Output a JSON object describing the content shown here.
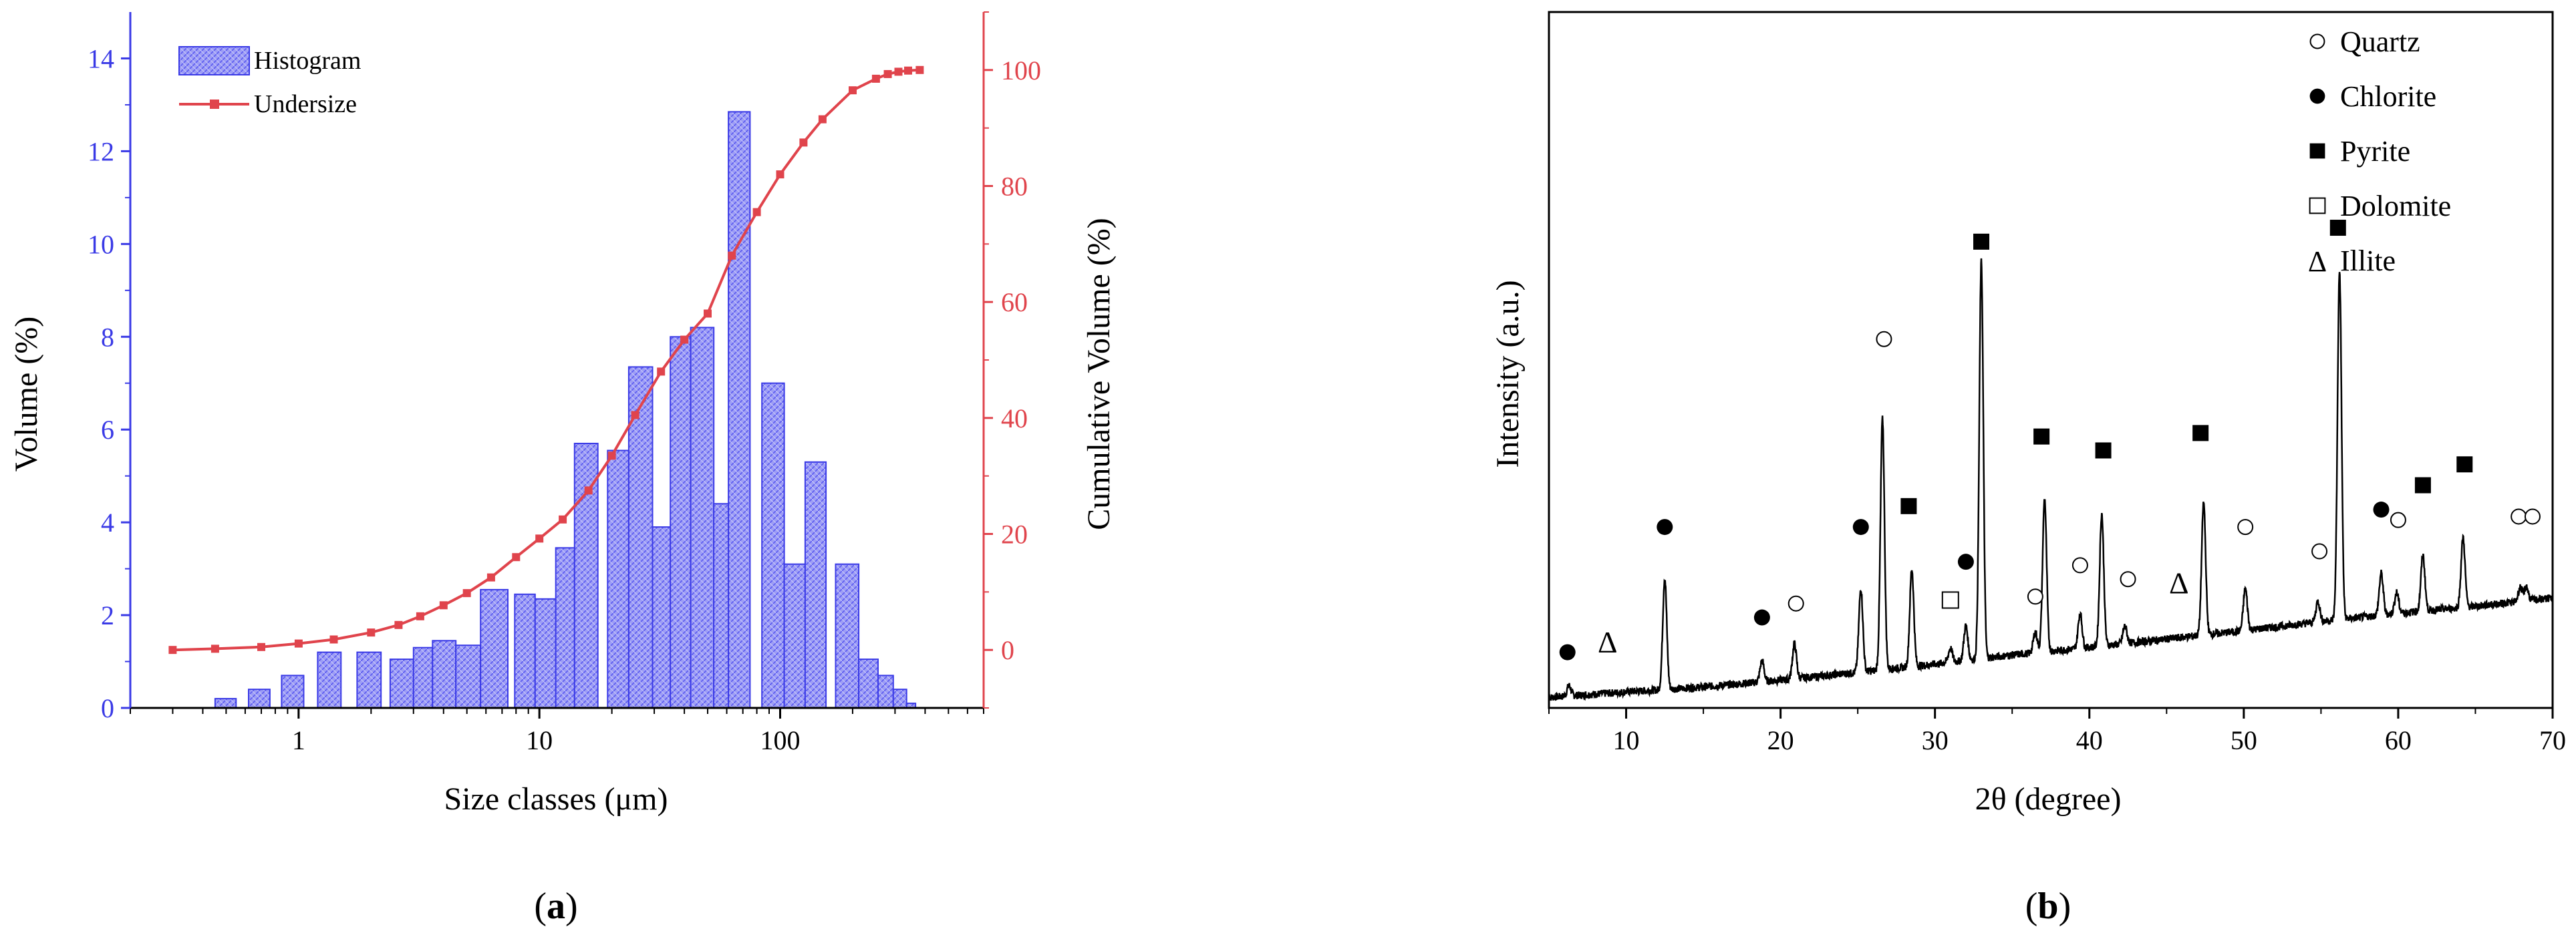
{
  "colors": {
    "histogram": "#3a3ae6",
    "histogram_fill": "#9d9df5",
    "undersize": "#e0444c",
    "axis": "#000000"
  },
  "panels": {
    "a": {
      "label_open": "(",
      "label_letter": "a",
      "label_close": ")"
    },
    "b": {
      "label_open": "(",
      "label_letter": "b",
      "label_close": ")"
    }
  },
  "chart_data": [
    {
      "id": "a",
      "type": "bar",
      "xlabel": "Size classes (μm)",
      "ylabel_left": "Volume (%)",
      "ylabel_right": "Cumulative Volume (%)",
      "x_scale": "log",
      "xlim": [
        0.2,
        700
      ],
      "ylim_left": [
        0,
        15
      ],
      "ylim_right": [
        -10,
        110
      ],
      "x_ticks": [
        1,
        10,
        100
      ],
      "x_tick_labels": [
        "1",
        "10",
        "100"
      ],
      "y_left_ticks": [
        0,
        2,
        4,
        6,
        8,
        10,
        12,
        14
      ],
      "y_left_tick_labels": [
        "0",
        "2",
        "4",
        "6",
        "8",
        "10",
        "12",
        "14"
      ],
      "y_right_ticks": [
        0,
        20,
        40,
        60,
        80,
        100
      ],
      "y_right_tick_labels": [
        "0",
        "20",
        "40",
        "60",
        "80",
        "100"
      ],
      "legend_position": "top-left",
      "series": [
        {
          "name": "Histogram",
          "type": "bar",
          "color": "#3a3ae6",
          "bins": [
            {
              "from": 0.45,
              "to": 0.55,
              "value": 0.2
            },
            {
              "from": 0.62,
              "to": 0.76,
              "value": 0.4
            },
            {
              "from": 0.85,
              "to": 1.05,
              "value": 0.7
            },
            {
              "from": 1.2,
              "to": 1.5,
              "value": 1.2
            },
            {
              "from": 1.75,
              "to": 2.2,
              "value": 1.2
            },
            {
              "from": 2.4,
              "to": 3.0,
              "value": 1.05
            },
            {
              "from": 3.0,
              "to": 3.6,
              "value": 1.3
            },
            {
              "from": 3.6,
              "to": 4.5,
              "value": 1.45
            },
            {
              "from": 4.5,
              "to": 5.7,
              "value": 1.35
            },
            {
              "from": 5.7,
              "to": 7.4,
              "value": 2.55
            },
            {
              "from": 7.9,
              "to": 9.6,
              "value": 2.45
            },
            {
              "from": 9.6,
              "to": 11.7,
              "value": 2.35
            },
            {
              "from": 11.7,
              "to": 14.0,
              "value": 3.45
            },
            {
              "from": 14.0,
              "to": 17.5,
              "value": 5.7
            },
            {
              "from": 19.2,
              "to": 23.5,
              "value": 5.55
            },
            {
              "from": 23.5,
              "to": 29.5,
              "value": 7.35
            },
            {
              "from": 29.5,
              "to": 35.0,
              "value": 3.9
            },
            {
              "from": 35.0,
              "to": 42.5,
              "value": 8.0
            },
            {
              "from": 42.5,
              "to": 53.0,
              "value": 8.2
            },
            {
              "from": 53.0,
              "to": 61.0,
              "value": 4.4
            },
            {
              "from": 61.0,
              "to": 75.0,
              "value": 12.85
            },
            {
              "from": 84.0,
              "to": 104.0,
              "value": 7.0
            },
            {
              "from": 104.0,
              "to": 127.0,
              "value": 3.1
            },
            {
              "from": 127.0,
              "to": 155.0,
              "value": 5.3
            },
            {
              "from": 170.0,
              "to": 212.0,
              "value": 3.1
            },
            {
              "from": 212.0,
              "to": 255.0,
              "value": 1.05
            },
            {
              "from": 255.0,
              "to": 295.0,
              "value": 0.7
            },
            {
              "from": 295.0,
              "to": 335.0,
              "value": 0.4
            },
            {
              "from": 335.0,
              "to": 365.0,
              "value": 0.1
            }
          ]
        },
        {
          "name": "Undersize",
          "type": "line",
          "axis": "right",
          "color": "#e0444c",
          "x": [
            0.3,
            0.45,
            0.7,
            1.0,
            1.4,
            2.0,
            2.6,
            3.2,
            4.0,
            5.0,
            6.3,
            8.0,
            10.0,
            12.5,
            16.0,
            20.0,
            25.0,
            32.0,
            40.0,
            50.0,
            63.0,
            80.0,
            100.0,
            125.0,
            150.0,
            200.0,
            250.0,
            280.0,
            310.0,
            340.0,
            380.0
          ],
          "y": [
            0.0,
            0.2,
            0.5,
            1.1,
            1.8,
            3.0,
            4.3,
            5.8,
            7.7,
            9.8,
            12.5,
            16.0,
            19.2,
            22.5,
            27.5,
            33.5,
            40.5,
            48.0,
            53.5,
            58.0,
            68.0,
            75.5,
            82.0,
            87.5,
            91.5,
            96.5,
            98.5,
            99.3,
            99.7,
            99.9,
            100.0
          ]
        }
      ]
    },
    {
      "id": "b",
      "type": "line",
      "xlabel": "2θ (degree)",
      "ylabel": "Intensity (a.u.)",
      "xlim": [
        5,
        70
      ],
      "ylim": [
        0,
        100
      ],
      "x_ticks": [
        10,
        20,
        30,
        40,
        50,
        60,
        70
      ],
      "x_tick_labels": [
        "10",
        "20",
        "30",
        "40",
        "50",
        "60",
        "70"
      ],
      "y_tick_labels_shown": false,
      "legend_position": "top-right",
      "legend": [
        {
          "marker": "open-circle",
          "label": "Quartz"
        },
        {
          "marker": "filled-circle",
          "label": "Chlorite"
        },
        {
          "marker": "filled-square",
          "label": "Pyrite"
        },
        {
          "marker": "open-square",
          "label": "Dolomite"
        },
        {
          "marker": "triangle-text",
          "glyph": "Δ",
          "label": "Illite"
        }
      ],
      "baseline": {
        "x": [
          5,
          10,
          15,
          20,
          25,
          30,
          35,
          40,
          45,
          50,
          55,
          60,
          65,
          70
        ],
        "y": [
          1.5,
          2.3,
          3.0,
          4.0,
          5.1,
          6.3,
          7.6,
          8.7,
          9.9,
          11.1,
          12.4,
          13.6,
          14.6,
          15.8
        ]
      },
      "peaks": [
        {
          "x": 6.3,
          "height": 1.5
        },
        {
          "x": 12.5,
          "height": 16
        },
        {
          "x": 18.8,
          "height": 3
        },
        {
          "x": 20.9,
          "height": 5
        },
        {
          "x": 25.2,
          "height": 12
        },
        {
          "x": 26.6,
          "height": 36
        },
        {
          "x": 28.5,
          "height": 14
        },
        {
          "x": 31.0,
          "height": 2
        },
        {
          "x": 32.0,
          "height": 5
        },
        {
          "x": 33.0,
          "height": 57
        },
        {
          "x": 36.5,
          "height": 3
        },
        {
          "x": 37.1,
          "height": 22
        },
        {
          "x": 39.4,
          "height": 5
        },
        {
          "x": 40.8,
          "height": 19
        },
        {
          "x": 42.3,
          "height": 2.5
        },
        {
          "x": 47.4,
          "height": 19
        },
        {
          "x": 50.1,
          "height": 6
        },
        {
          "x": 54.8,
          "height": 3
        },
        {
          "x": 56.2,
          "height": 50
        },
        {
          "x": 58.9,
          "height": 6
        },
        {
          "x": 59.9,
          "height": 3
        },
        {
          "x": 61.6,
          "height": 8
        },
        {
          "x": 64.2,
          "height": 10
        },
        {
          "x": 67.9,
          "height": 2
        },
        {
          "x": 68.3,
          "height": 2
        }
      ],
      "annotations": [
        {
          "marker": "filled-circle",
          "x": 6.2,
          "y": 8
        },
        {
          "marker": "triangle-text",
          "glyph": "Δ",
          "x": 8.8,
          "y": 9.5
        },
        {
          "marker": "filled-circle",
          "x": 12.5,
          "y": 26
        },
        {
          "marker": "filled-circle",
          "x": 18.8,
          "y": 13
        },
        {
          "marker": "open-circle",
          "x": 21.0,
          "y": 15
        },
        {
          "marker": "filled-circle",
          "x": 25.2,
          "y": 26
        },
        {
          "marker": "open-circle",
          "x": 26.7,
          "y": 53
        },
        {
          "marker": "filled-square",
          "x": 28.3,
          "y": 29
        },
        {
          "marker": "filled-circle",
          "x": 32.0,
          "y": 21
        },
        {
          "marker": "open-square",
          "x": 31.0,
          "y": 15.5
        },
        {
          "marker": "filled-square",
          "x": 33.0,
          "y": 67
        },
        {
          "marker": "open-circle",
          "x": 36.5,
          "y": 16
        },
        {
          "marker": "filled-square",
          "x": 36.9,
          "y": 39
        },
        {
          "marker": "open-circle",
          "x": 39.4,
          "y": 20.5
        },
        {
          "marker": "filled-square",
          "x": 40.9,
          "y": 37
        },
        {
          "marker": "open-circle",
          "x": 42.5,
          "y": 18.5
        },
        {
          "marker": "triangle-text",
          "glyph": "Δ",
          "x": 45.8,
          "y": 18
        },
        {
          "marker": "filled-square",
          "x": 47.2,
          "y": 39.5
        },
        {
          "marker": "open-circle",
          "x": 50.1,
          "y": 26
        },
        {
          "marker": "open-circle",
          "x": 54.9,
          "y": 22.5
        },
        {
          "marker": "filled-square",
          "x": 56.1,
          "y": 69
        },
        {
          "marker": "filled-circle",
          "x": 58.9,
          "y": 28.5
        },
        {
          "marker": "open-circle",
          "x": 60.0,
          "y": 27
        },
        {
          "marker": "filled-square",
          "x": 61.6,
          "y": 32
        },
        {
          "marker": "filled-square",
          "x": 64.3,
          "y": 35
        },
        {
          "marker": "open-circle",
          "x": 67.8,
          "y": 27.5
        },
        {
          "marker": "open-circle",
          "x": 68.7,
          "y": 27.5
        }
      ]
    }
  ]
}
